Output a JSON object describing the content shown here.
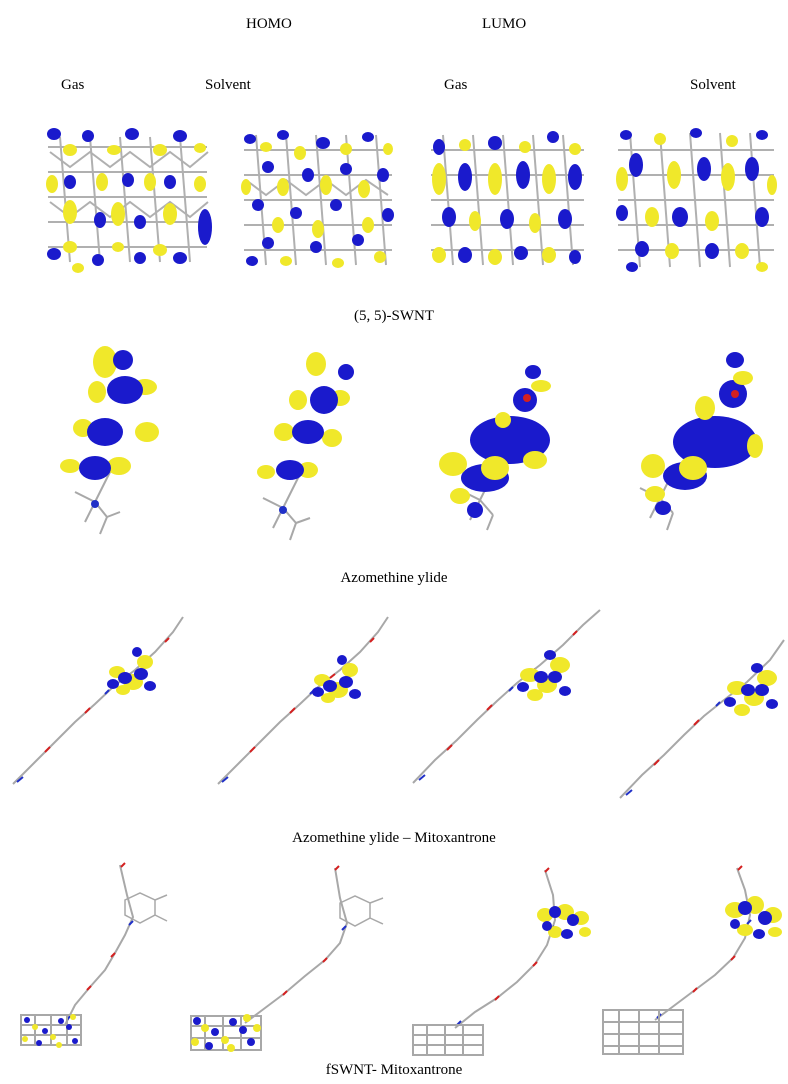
{
  "header": {
    "homo": "HOMO",
    "lumo": "LUMO"
  },
  "columns": [
    "Gas",
    "Solvent",
    "Gas",
    "Solvent"
  ],
  "rows": [
    {
      "caption": "(5, 5)-SWNT"
    },
    {
      "caption": "Azomethine ylide"
    },
    {
      "caption": "Azomethine ylide – Mitoxantrone"
    },
    {
      "caption": "fSWNT- Mitoxantrone"
    }
  ],
  "colors": {
    "lobe_positive": "#1a1acc",
    "lobe_negative": "#f0e82a",
    "bond": "#a8a8a8",
    "oxygen": "#d42020",
    "nitrogen": "#2030c8"
  }
}
